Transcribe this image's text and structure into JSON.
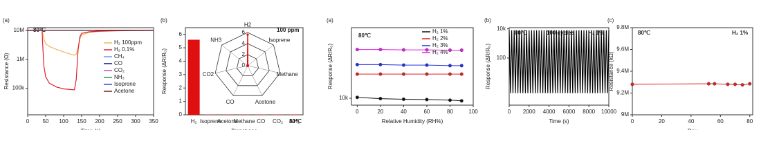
{
  "chart_data": [
    {
      "type": "line",
      "panel_label": "(a)",
      "x_label": "Time (s)",
      "y_label": "Resistance (Ω)",
      "log_y": true,
      "xlim": [
        0,
        350
      ],
      "xticks": [
        0,
        50,
        100,
        150,
        200,
        250,
        300,
        350
      ],
      "ylim": [
        12000,
        12500000
      ],
      "yticks": [
        {
          "value": 100000,
          "label": "100k"
        },
        {
          "value": 1000000,
          "label": "1M"
        },
        {
          "value": 10000000,
          "label": "10M"
        }
      ],
      "notes": [
        {
          "text": "80℃",
          "color": "#e00000"
        }
      ],
      "x": [
        0,
        40,
        42,
        45,
        50,
        60,
        80,
        100,
        120,
        130,
        135,
        140,
        145,
        150,
        170,
        200,
        250,
        300,
        350
      ],
      "series": [
        {
          "name": "H₂ 100ppm",
          "color": "#e8b860",
          "values": [
            10000000,
            10000000,
            8000000,
            5000000,
            3500000,
            2800000,
            2200000,
            1800000,
            1500000,
            1400000,
            1500000,
            2500000,
            5000000,
            7000000,
            8500000,
            9300000,
            9700000,
            9900000,
            10000000
          ]
        },
        {
          "name": "H₂ 0.1%",
          "color": "#e02030",
          "values": [
            10000000,
            10000000,
            3000000,
            600000,
            250000,
            150000,
            110000,
            95000,
            90000,
            88000,
            200000,
            2000000,
            6000000,
            8000000,
            9000000,
            9500000,
            9800000,
            9900000,
            10000000
          ]
        },
        {
          "name": "CH₄",
          "color": "#60a0e0",
          "x": [
            0,
            350
          ],
          "values": [
            10200000,
            10200000
          ]
        },
        {
          "name": "CO",
          "color": "#101080",
          "x": [
            0,
            350
          ],
          "values": [
            10200000,
            10200000
          ]
        },
        {
          "name": "CO₂",
          "color": "#b050c0",
          "x": [
            0,
            350
          ],
          "values": [
            10200000,
            10200000
          ]
        },
        {
          "name": "NH₃",
          "color": "#20a040",
          "x": [
            0,
            350
          ],
          "values": [
            10200000,
            10200000
          ]
        },
        {
          "name": "Isoprene",
          "color": "#4040e0",
          "x": [
            0,
            350
          ],
          "values": [
            10200000,
            10200000
          ]
        },
        {
          "name": "Acetone",
          "color": "#702020",
          "x": [
            0,
            350
          ],
          "values": [
            10200000,
            10200000
          ]
        }
      ]
    },
    {
      "type": "bar",
      "panel_label": "(b)",
      "x_label": "Target gas",
      "y_label": "Response (ΔR/R₀)",
      "categories": [
        "H₂",
        "Isoprene",
        "Acetone",
        "Methane",
        "CO",
        "CO₂",
        "NH₃"
      ],
      "values": [
        5.6,
        0.02,
        0.02,
        0.02,
        0.02,
        0.02,
        0.02
      ],
      "color": "#e01010",
      "ylim": [
        0,
        6.5
      ],
      "yticks": [
        0,
        1,
        2,
        3,
        4,
        5,
        6
      ],
      "notes": [
        {
          "text": "100 ppm",
          "color": "#222222"
        },
        {
          "text": "80℃",
          "color": "#e00000"
        }
      ]
    },
    {
      "type": "line",
      "panel_label": "(a)",
      "x_label": "Relative Humidity (RH%)",
      "y_label": "Response (ΔR/R₀)",
      "log_y": true,
      "markers": true,
      "xlim": [
        -5,
        100
      ],
      "xticks": [
        0,
        20,
        40,
        60,
        80,
        100
      ],
      "ylim": [
        8000,
        100000
      ],
      "yticks": [
        {
          "value": 10000,
          "label": "10k"
        }
      ],
      "notes": [
        {
          "text": "80℃",
          "color": "#e00000"
        }
      ],
      "x": [
        0,
        20,
        40,
        60,
        80,
        90
      ],
      "series": [
        {
          "name": "H₂ 1%",
          "color": "#111111",
          "values": [
            10300,
            9900,
            9700,
            9600,
            9400,
            9200
          ]
        },
        {
          "name": "H₂ 2%",
          "color": "#e02020",
          "values": [
            22000,
            22000,
            22000,
            22000,
            22000,
            22000
          ]
        },
        {
          "name": "H₂ 3%",
          "color": "#2030e0",
          "values": [
            30000,
            30000,
            29500,
            29500,
            29000,
            29000
          ]
        },
        {
          "name": "H₂ 4%",
          "color": "#e020e0",
          "values": [
            49000,
            49000,
            48500,
            48500,
            48000,
            48000
          ]
        }
      ]
    },
    {
      "type": "line",
      "panel_label": "(b)",
      "x_label": "Time (s)",
      "y_label": "Response (ΔR/R₀)",
      "log_y": true,
      "xlim": [
        0,
        10000
      ],
      "xticks": [
        0,
        2000,
        4000,
        6000,
        8000,
        10000
      ],
      "ylim": [
        0.06,
        12000
      ],
      "yticks": [
        {
          "value": 100,
          "label": "100"
        },
        {
          "value": 10000,
          "label": "10k"
        }
      ],
      "notes": [
        {
          "text": "80℃",
          "color": "#e00000"
        },
        {
          "text": "100 cycles",
          "color": "#222222"
        },
        {
          "text": "H₂  1%",
          "color": "#222222"
        }
      ],
      "x": [
        0,
        125,
        250,
        375,
        500,
        625,
        750,
        875,
        1000,
        1125,
        1250,
        1375,
        1500,
        1625,
        1750,
        1875,
        2000,
        2125,
        2250,
        2375,
        2500,
        2625,
        2750,
        2875,
        3000,
        3125,
        3250,
        3375,
        3500,
        3625,
        3750,
        3875,
        4000,
        4125,
        4250,
        4375,
        4500,
        4625,
        4750,
        4875,
        5000,
        5125,
        5250,
        5375,
        5500,
        5625,
        5750,
        5875,
        6000,
        6125,
        6250,
        6375,
        6500,
        6625,
        6750,
        6875,
        7000,
        7125,
        7250,
        7375,
        7500,
        7625,
        7750,
        7875,
        8000,
        8125,
        8250,
        8375,
        8500,
        8625,
        8750,
        8875,
        9000,
        9125,
        9250,
        9375,
        9500,
        9625,
        9750,
        9875,
        10000
      ],
      "series": [
        {
          "name": "H₂ 1%",
          "color": "#000000",
          "values": [
            8000,
            0.4,
            8000,
            0.4,
            8000,
            0.4,
            8000,
            0.4,
            8000,
            0.4,
            8000,
            0.4,
            8000,
            0.4,
            8000,
            0.4,
            8000,
            0.4,
            8000,
            0.4,
            8000,
            0.4,
            8000,
            0.4,
            8000,
            0.4,
            8000,
            0.4,
            8000,
            0.4,
            8000,
            0.4,
            8000,
            0.4,
            8000,
            0.4,
            8000,
            0.4,
            8000,
            0.4,
            8000,
            0.4,
            8000,
            0.4,
            8000,
            0.4,
            8000,
            0.4,
            8000,
            0.4,
            8000,
            0.4,
            8000,
            0.4,
            8000,
            0.4,
            8000,
            0.4,
            8000,
            0.4,
            8000,
            0.4,
            8000,
            0.4,
            8000,
            0.4,
            8000,
            0.4,
            8000,
            0.4,
            8000,
            0.4,
            8000,
            0.4,
            8000,
            0.4,
            8000,
            0.4,
            8000,
            0.4,
            8000
          ]
        }
      ]
    },
    {
      "type": "line",
      "panel_label": "(c)",
      "x_label": "Day",
      "y_label": "Resistance (kΩ)",
      "markers": true,
      "xlim": [
        0,
        82
      ],
      "xticks": [
        0,
        20,
        40,
        60,
        80
      ],
      "ylim": [
        9000000,
        9800000
      ],
      "yticks": [
        {
          "value": 9000000,
          "label": "9M"
        },
        {
          "value": 9200000,
          "label": "9.2M"
        },
        {
          "value": 9400000,
          "label": "9.4M"
        },
        {
          "value": 9600000,
          "label": "9.6M"
        },
        {
          "value": 9800000,
          "label": "9.8M"
        }
      ],
      "notes": [
        {
          "text": "80℃",
          "color": "#e00000"
        },
        {
          "text": "H₂  1%",
          "color": "#222222"
        }
      ],
      "x": [
        0,
        52,
        56,
        65,
        70,
        75,
        80
      ],
      "series": [
        {
          "name": "H₂ 1%",
          "color": "#e02020",
          "values": [
            9280000,
            9285000,
            9285000,
            9280000,
            9280000,
            9275000,
            9285000
          ]
        }
      ]
    },
    {
      "type": "radar",
      "axes": [
        "H2",
        "Isoprene",
        "Methane",
        "Acetone",
        "CO",
        "CO2",
        "NH3"
      ],
      "values": [
        5.6,
        0.05,
        0.05,
        0.05,
        0.05,
        0.05,
        0.05
      ],
      "color": "#e01010",
      "rlim": [
        0,
        6
      ],
      "rticks": [
        0,
        2,
        4,
        6
      ]
    }
  ]
}
